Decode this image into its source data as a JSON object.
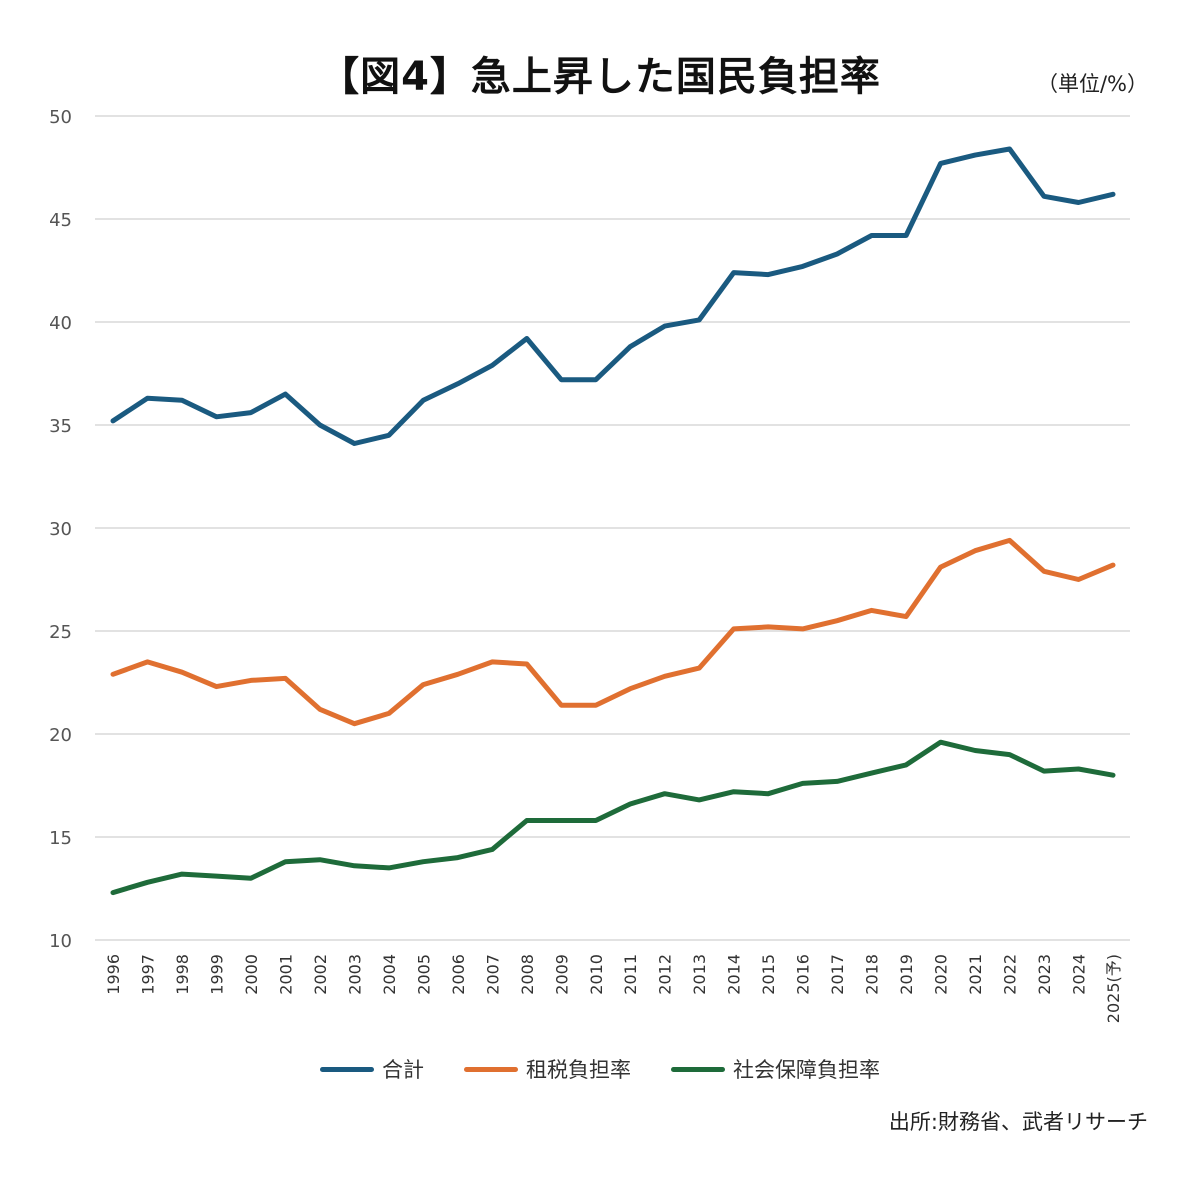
{
  "chart_data": {
    "type": "line",
    "title": "【図4】急上昇した国民負担率",
    "unit": "（単位/%）",
    "source": "出所:財務省、武者リサーチ",
    "categories": [
      "1996",
      "1997",
      "1998",
      "1999",
      "2000",
      "2001",
      "2002",
      "2003",
      "2004",
      "2005",
      "2006",
      "2007",
      "2008",
      "2009",
      "2010",
      "2011",
      "2012",
      "2013",
      "2014",
      "2015",
      "2016",
      "2017",
      "2018",
      "2019",
      "2020",
      "2021",
      "2022",
      "2023",
      "2024",
      "2025(予)"
    ],
    "ylim": [
      10,
      50
    ],
    "yticks": [
      "10",
      "15",
      "20",
      "25",
      "30",
      "35",
      "40",
      "45",
      "50"
    ],
    "grid": true,
    "legend_position": "bottom",
    "series": [
      {
        "name": "合計",
        "color": "#1a5a80",
        "values": [
          35.2,
          36.3,
          36.2,
          35.4,
          35.6,
          36.5,
          35.0,
          34.1,
          34.5,
          36.2,
          37.0,
          37.9,
          39.2,
          37.2,
          37.2,
          38.8,
          39.8,
          40.1,
          42.4,
          42.3,
          42.7,
          43.3,
          44.2,
          44.2,
          47.7,
          48.1,
          48.4,
          46.1,
          45.8,
          46.2
        ]
      },
      {
        "name": "租税負担率",
        "color": "#e07030",
        "values": [
          22.9,
          23.5,
          23.0,
          22.3,
          22.6,
          22.7,
          21.2,
          20.5,
          21.0,
          22.4,
          22.9,
          23.5,
          23.4,
          21.4,
          21.4,
          22.2,
          22.8,
          23.2,
          25.1,
          25.2,
          25.1,
          25.5,
          26.0,
          25.7,
          28.1,
          28.9,
          29.4,
          27.9,
          27.5,
          28.2
        ]
      },
      {
        "name": "社会保障負担率",
        "color": "#1e6b3a",
        "values": [
          12.3,
          12.8,
          13.2,
          13.1,
          13.0,
          13.8,
          13.9,
          13.6,
          13.5,
          13.8,
          14.0,
          14.4,
          15.8,
          15.8,
          15.8,
          16.6,
          17.1,
          16.8,
          17.2,
          17.1,
          17.6,
          17.7,
          18.1,
          18.5,
          19.6,
          19.2,
          19.0,
          18.2,
          18.3,
          18.0
        ]
      }
    ]
  }
}
